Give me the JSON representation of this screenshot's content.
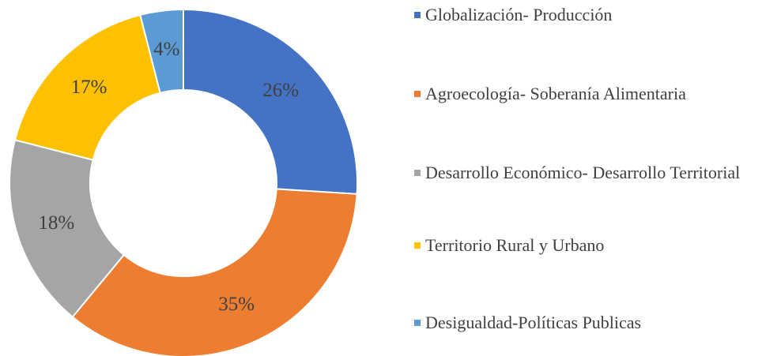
{
  "chart_data": {
    "type": "donut",
    "categories": [
      "Globalización- Producción",
      "Agroecología- Soberanía Alimentaria",
      "Desarrollo Económico- Desarrollo Territorial",
      "Territorio Rural y Urbano",
      "Desigualdad-Políticas Publicas"
    ],
    "values": [
      26,
      35,
      18,
      17,
      4
    ],
    "value_labels": [
      "26%",
      "35%",
      "18%",
      "17%",
      "4%"
    ],
    "colors": [
      "#4472c4",
      "#ed7d31",
      "#a5a5a5",
      "#ffc000",
      "#5b9bd5"
    ],
    "legend": "right"
  }
}
